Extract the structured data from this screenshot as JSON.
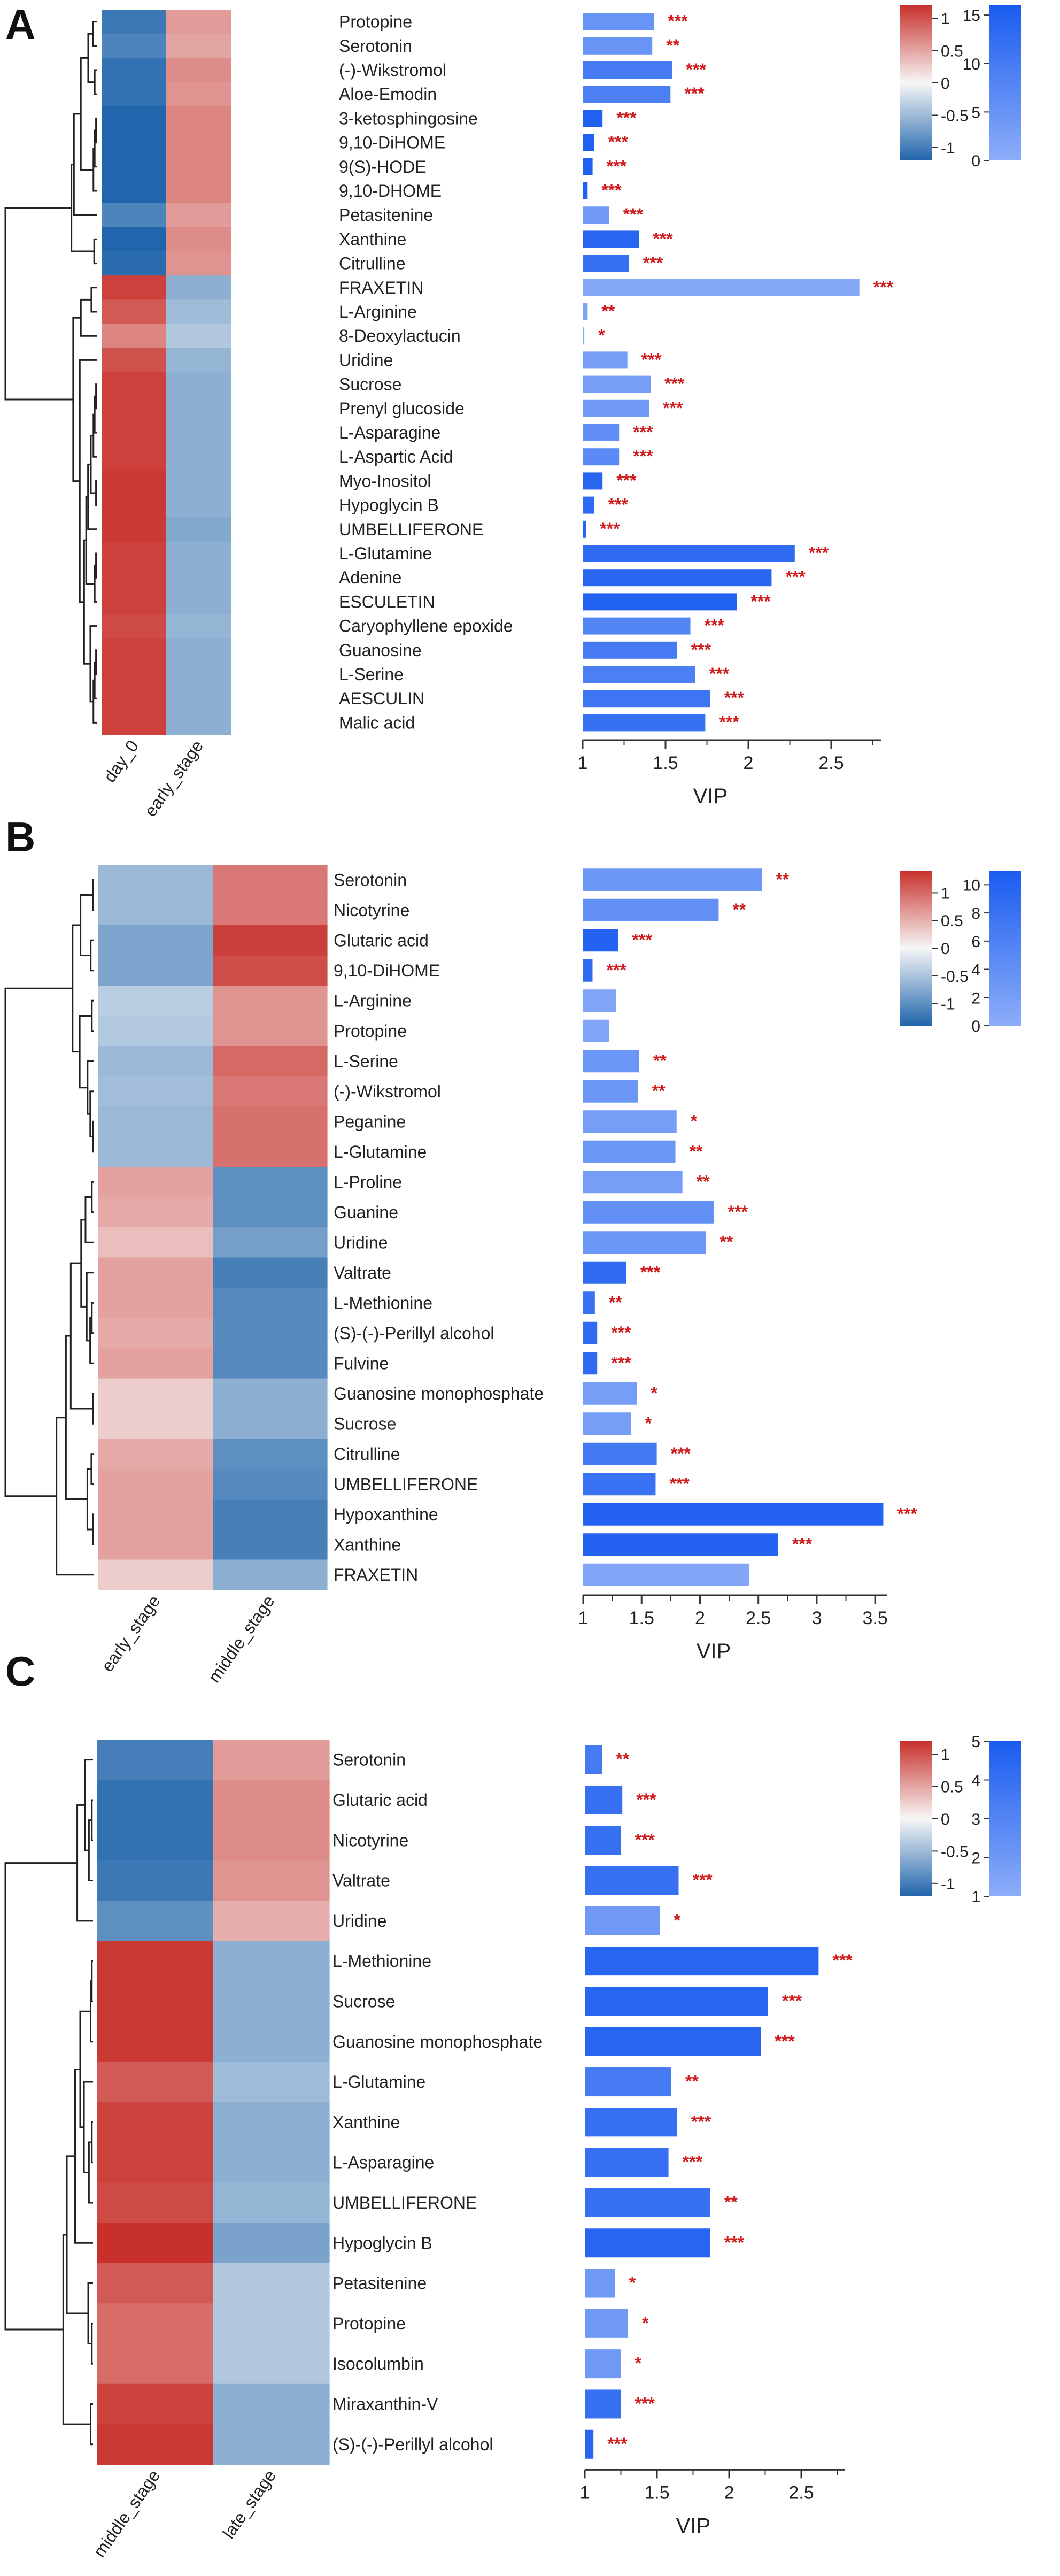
{
  "figure": {
    "colors": {
      "heat_low": "#2166ac",
      "heat_mid": "#f7f7f7",
      "heat_high": "#c8312b",
      "vip_low": "#8cadf8",
      "vip_high": "#1a5cf0",
      "star": "#d01c1c",
      "axis": "#333333",
      "dendro": "#222222"
    },
    "x_label": "VIP"
  },
  "chart_data": [
    {
      "type": "heatmap+bar",
      "panel_label": "A",
      "columns": [
        "day_0",
        "early_stage"
      ],
      "heat_scale": {
        "min": -1.2,
        "max": 1.2,
        "ticks": [
          "1",
          "0.5",
          "0",
          "-0.5",
          "-1"
        ],
        "tick_values": [
          1,
          0.5,
          0,
          -0.5,
          -1
        ]
      },
      "vip_color_scale": {
        "min": 0,
        "max": 16,
        "ticks": [
          "15",
          "10",
          "5",
          "0"
        ],
        "tick_values": [
          15,
          10,
          5,
          0
        ]
      },
      "xaxis": {
        "label": "VIP",
        "min": 1,
        "max": 2.8,
        "ticks": [
          "1",
          "1.5",
          "2",
          "2.5"
        ],
        "tick_values": [
          1,
          1.5,
          2,
          2.5
        ]
      },
      "rows": [
        {
          "name": "Protopine",
          "heat": [
            -1.05,
            0.55
          ],
          "vip": 1.43,
          "color_value": 5,
          "sig": "***"
        },
        {
          "name": "Serotonin",
          "heat": [
            -0.95,
            0.5
          ],
          "vip": 1.42,
          "color_value": 5,
          "sig": "**"
        },
        {
          "name": "(-)-Wikstromol",
          "heat": [
            -1.1,
            0.65
          ],
          "vip": 1.54,
          "color_value": 10,
          "sig": "***"
        },
        {
          "name": "Aloe-Emodin",
          "heat": [
            -1.1,
            0.6
          ],
          "vip": 1.53,
          "color_value": 9,
          "sig": "***"
        },
        {
          "name": "3-ketosphingosine",
          "heat": [
            -1.25,
            0.7
          ],
          "vip": 1.12,
          "color_value": 15,
          "sig": "***"
        },
        {
          "name": "9,10-DiHOME",
          "heat": [
            -1.25,
            0.7
          ],
          "vip": 1.07,
          "color_value": 15,
          "sig": "***"
        },
        {
          "name": "9(S)-HODE",
          "heat": [
            -1.25,
            0.7
          ],
          "vip": 1.06,
          "color_value": 15,
          "sig": "***"
        },
        {
          "name": "9,10-DHOME",
          "heat": [
            -1.25,
            0.7
          ],
          "vip": 1.03,
          "color_value": 15,
          "sig": "***"
        },
        {
          "name": "Petasitenine",
          "heat": [
            -0.95,
            0.55
          ],
          "vip": 1.16,
          "color_value": 4,
          "sig": "***"
        },
        {
          "name": "Xanthine",
          "heat": [
            -1.2,
            0.65
          ],
          "vip": 1.34,
          "color_value": 14,
          "sig": "***"
        },
        {
          "name": "Citrulline",
          "heat": [
            -1.15,
            0.6
          ],
          "vip": 1.28,
          "color_value": 12,
          "sig": "***"
        },
        {
          "name": "FRAXETIN",
          "heat": [
            1.1,
            -0.6
          ],
          "vip": 2.67,
          "color_value": 1,
          "sig": "***"
        },
        {
          "name": "L-Arginine",
          "heat": [
            0.95,
            -0.5
          ],
          "vip": 1.03,
          "color_value": 2,
          "sig": "**"
        },
        {
          "name": "8-Deoxylactucin",
          "heat": [
            0.7,
            -0.4
          ],
          "vip": 1.01,
          "color_value": 1,
          "sig": "*"
        },
        {
          "name": "Uridine",
          "heat": [
            1.0,
            -0.55
          ],
          "vip": 1.27,
          "color_value": 3,
          "sig": "***"
        },
        {
          "name": "Sucrose",
          "heat": [
            1.1,
            -0.6
          ],
          "vip": 1.41,
          "color_value": 3,
          "sig": "***"
        },
        {
          "name": "Prenyl glucoside",
          "heat": [
            1.1,
            -0.6
          ],
          "vip": 1.4,
          "color_value": 4,
          "sig": "***"
        },
        {
          "name": "L-Asparagine",
          "heat": [
            1.1,
            -0.6
          ],
          "vip": 1.22,
          "color_value": 6,
          "sig": "***"
        },
        {
          "name": "L-Aspartic Acid",
          "heat": [
            1.1,
            -0.6
          ],
          "vip": 1.22,
          "color_value": 7,
          "sig": "***"
        },
        {
          "name": "Myo-Inositol",
          "heat": [
            1.15,
            -0.6
          ],
          "vip": 1.12,
          "color_value": 14,
          "sig": "***"
        },
        {
          "name": "Hypoglycin B",
          "heat": [
            1.15,
            -0.6
          ],
          "vip": 1.07,
          "color_value": 13,
          "sig": "***"
        },
        {
          "name": "UMBELLIFERONE",
          "heat": [
            1.15,
            -0.65
          ],
          "vip": 1.02,
          "color_value": 14,
          "sig": "***"
        },
        {
          "name": "L-Glutamine",
          "heat": [
            1.1,
            -0.6
          ],
          "vip": 2.28,
          "color_value": 13,
          "sig": "***"
        },
        {
          "name": "Adenine",
          "heat": [
            1.1,
            -0.6
          ],
          "vip": 2.14,
          "color_value": 14,
          "sig": "***"
        },
        {
          "name": "ESCULETIN",
          "heat": [
            1.1,
            -0.6
          ],
          "vip": 1.93,
          "color_value": 15,
          "sig": "***"
        },
        {
          "name": "Caryophyllene epoxide",
          "heat": [
            1.05,
            -0.55
          ],
          "vip": 1.65,
          "color_value": 8,
          "sig": "***"
        },
        {
          "name": "Guanosine",
          "heat": [
            1.1,
            -0.6
          ],
          "vip": 1.57,
          "color_value": 10,
          "sig": "***"
        },
        {
          "name": "L-Serine",
          "heat": [
            1.1,
            -0.6
          ],
          "vip": 1.68,
          "color_value": 9,
          "sig": "***"
        },
        {
          "name": "AESCULIN",
          "heat": [
            1.1,
            -0.6
          ],
          "vip": 1.77,
          "color_value": 11,
          "sig": "***"
        },
        {
          "name": "Malic acid",
          "heat": [
            1.1,
            -0.6
          ],
          "vip": 1.74,
          "color_value": 12,
          "sig": "***"
        }
      ]
    },
    {
      "type": "heatmap+bar",
      "panel_label": "B",
      "columns": [
        "early_stage",
        "middle_stage"
      ],
      "heat_scale": {
        "min": -1.4,
        "max": 1.4,
        "ticks": [
          "1",
          "0.5",
          "0",
          "-0.5",
          "-1"
        ],
        "tick_values": [
          1,
          0.5,
          0,
          -0.5,
          -1
        ]
      },
      "vip_color_scale": {
        "min": 0,
        "max": 11,
        "ticks": [
          "10",
          "8",
          "6",
          "4",
          "2",
          "0"
        ],
        "tick_values": [
          10,
          8,
          6,
          4,
          2,
          0
        ]
      },
      "xaxis": {
        "label": "VIP",
        "min": 1,
        "max": 3.6,
        "ticks": [
          "1",
          "1.5",
          "2",
          "2.5",
          "3",
          "3.5"
        ],
        "tick_values": [
          1,
          1.5,
          2,
          2.5,
          3,
          3.5
        ]
      },
      "rows": [
        {
          "name": "Serotonin",
          "heat": [
            -0.6,
            0.9
          ],
          "vip": 2.53,
          "color_value": 3,
          "sig": "**"
        },
        {
          "name": "Nicotyrine",
          "heat": [
            -0.6,
            0.9
          ],
          "vip": 2.16,
          "color_value": 4,
          "sig": "**"
        },
        {
          "name": "Glutaric acid",
          "heat": [
            -0.8,
            1.3
          ],
          "vip": 1.3,
          "color_value": 10,
          "sig": "***"
        },
        {
          "name": "9,10-DiHOME",
          "heat": [
            -0.8,
            1.2
          ],
          "vip": 1.08,
          "color_value": 9,
          "sig": "***"
        },
        {
          "name": "L-Arginine",
          "heat": [
            -0.4,
            0.7
          ],
          "vip": 1.28,
          "color_value": 1,
          "sig": ""
        },
        {
          "name": "Protopine",
          "heat": [
            -0.45,
            0.7
          ],
          "vip": 1.22,
          "color_value": 1,
          "sig": ""
        },
        {
          "name": "L-Serine",
          "heat": [
            -0.6,
            1.0
          ],
          "vip": 1.48,
          "color_value": 3,
          "sig": "**"
        },
        {
          "name": "(-)-Wikstromol",
          "heat": [
            -0.55,
            0.9
          ],
          "vip": 1.47,
          "color_value": 3,
          "sig": "**"
        },
        {
          "name": "Peganine",
          "heat": [
            -0.6,
            0.95
          ],
          "vip": 1.8,
          "color_value": 2,
          "sig": "*"
        },
        {
          "name": "L-Glutamine",
          "heat": [
            -0.6,
            0.95
          ],
          "vip": 1.79,
          "color_value": 3,
          "sig": "**"
        },
        {
          "name": "L-Proline",
          "heat": [
            0.6,
            -1.0
          ],
          "vip": 1.85,
          "color_value": 2,
          "sig": "**"
        },
        {
          "name": "Guanine",
          "heat": [
            0.55,
            -1.0
          ],
          "vip": 2.12,
          "color_value": 4,
          "sig": "***"
        },
        {
          "name": "Uridine",
          "heat": [
            0.4,
            -0.85
          ],
          "vip": 2.05,
          "color_value": 3,
          "sig": "**"
        },
        {
          "name": "Valtrate",
          "heat": [
            0.6,
            -1.15
          ],
          "vip": 1.37,
          "color_value": 9,
          "sig": "***"
        },
        {
          "name": "L-Methionine",
          "heat": [
            0.6,
            -1.05
          ],
          "vip": 1.1,
          "color_value": 8,
          "sig": "**"
        },
        {
          "name": "(S)-(-)-Perillyl alcohol",
          "heat": [
            0.55,
            -1.05
          ],
          "vip": 1.12,
          "color_value": 9,
          "sig": "***"
        },
        {
          "name": "Fulvine",
          "heat": [
            0.6,
            -1.05
          ],
          "vip": 1.12,
          "color_value": 9,
          "sig": "***"
        },
        {
          "name": "Guanosine monophosphate",
          "heat": [
            0.3,
            -0.7
          ],
          "vip": 1.46,
          "color_value": 2,
          "sig": "*"
        },
        {
          "name": "Sucrose",
          "heat": [
            0.3,
            -0.7
          ],
          "vip": 1.41,
          "color_value": 2,
          "sig": "*"
        },
        {
          "name": "Citrulline",
          "heat": [
            0.55,
            -1.0
          ],
          "vip": 1.63,
          "color_value": 7,
          "sig": "***"
        },
        {
          "name": "UMBELLIFERONE",
          "heat": [
            0.6,
            -1.05
          ],
          "vip": 1.62,
          "color_value": 8,
          "sig": "***"
        },
        {
          "name": "Hypoxanthine",
          "heat": [
            0.6,
            -1.15
          ],
          "vip": 3.57,
          "color_value": 10,
          "sig": "***"
        },
        {
          "name": "Xanthine",
          "heat": [
            0.6,
            -1.15
          ],
          "vip": 2.67,
          "color_value": 10,
          "sig": "***"
        },
        {
          "name": "FRAXETIN",
          "heat": [
            0.3,
            -0.7
          ],
          "vip": 2.42,
          "color_value": 1,
          "sig": ""
        }
      ]
    },
    {
      "type": "heatmap+bar",
      "panel_label": "C",
      "columns": [
        "middle_stage",
        "late_stage"
      ],
      "heat_scale": {
        "min": -1.2,
        "max": 1.2,
        "ticks": [
          "1",
          "0.5",
          "0",
          "-0.5",
          "-1"
        ],
        "tick_values": [
          1,
          0.5,
          0,
          -0.5,
          -1
        ]
      },
      "vip_color_scale": {
        "min": 1,
        "max": 5,
        "ticks": [
          "5",
          "4",
          "3",
          "2",
          "1"
        ],
        "tick_values": [
          5,
          4,
          3,
          2,
          1
        ]
      },
      "xaxis": {
        "label": "VIP",
        "min": 1,
        "max": 2.8,
        "ticks": [
          "1",
          "1.5",
          "2",
          "2.5"
        ],
        "tick_values": [
          1,
          1.5,
          2,
          2.5
        ]
      },
      "rows": [
        {
          "name": "Serotonin",
          "heat": [
            -1.0,
            0.55
          ],
          "vip": 1.12,
          "color_value": 3.5,
          "sig": "**"
        },
        {
          "name": "Glutaric acid",
          "heat": [
            -1.1,
            0.65
          ],
          "vip": 1.26,
          "color_value": 4,
          "sig": "***"
        },
        {
          "name": "Nicotyrine",
          "heat": [
            -1.1,
            0.65
          ],
          "vip": 1.25,
          "color_value": 4,
          "sig": "***"
        },
        {
          "name": "Valtrate",
          "heat": [
            -1.05,
            0.6
          ],
          "vip": 1.65,
          "color_value": 4,
          "sig": "***"
        },
        {
          "name": "Uridine",
          "heat": [
            -0.85,
            0.45
          ],
          "vip": 1.52,
          "color_value": 2,
          "sig": "*"
        },
        {
          "name": "L-Methionine",
          "heat": [
            1.15,
            -0.6
          ],
          "vip": 2.62,
          "color_value": 4.5,
          "sig": "***"
        },
        {
          "name": "Sucrose",
          "heat": [
            1.15,
            -0.6
          ],
          "vip": 2.27,
          "color_value": 4.5,
          "sig": "***"
        },
        {
          "name": "Guanosine monophosphate",
          "heat": [
            1.15,
            -0.6
          ],
          "vip": 2.22,
          "color_value": 4.5,
          "sig": "***"
        },
        {
          "name": "L-Glutamine",
          "heat": [
            0.95,
            -0.5
          ],
          "vip": 1.6,
          "color_value": 3.5,
          "sig": "**"
        },
        {
          "name": "Xanthine",
          "heat": [
            1.1,
            -0.6
          ],
          "vip": 1.64,
          "color_value": 4,
          "sig": "***"
        },
        {
          "name": "L-Asparagine",
          "heat": [
            1.1,
            -0.6
          ],
          "vip": 1.58,
          "color_value": 4,
          "sig": "***"
        },
        {
          "name": "UMBELLIFERONE",
          "heat": [
            1.05,
            -0.55
          ],
          "vip": 1.87,
          "color_value": 4,
          "sig": "**"
        },
        {
          "name": "Hypoglycin B",
          "heat": [
            1.2,
            -0.7
          ],
          "vip": 1.87,
          "color_value": 4.5,
          "sig": "***"
        },
        {
          "name": "Petasitenine",
          "heat": [
            0.95,
            -0.4
          ],
          "vip": 1.21,
          "color_value": 2,
          "sig": "*"
        },
        {
          "name": "Protopine",
          "heat": [
            0.85,
            -0.4
          ],
          "vip": 1.3,
          "color_value": 2,
          "sig": "*"
        },
        {
          "name": "Isocolumbin",
          "heat": [
            0.85,
            -0.4
          ],
          "vip": 1.25,
          "color_value": 2,
          "sig": "*"
        },
        {
          "name": "Miraxanthin-V",
          "heat": [
            1.1,
            -0.6
          ],
          "vip": 1.25,
          "color_value": 4,
          "sig": "***"
        },
        {
          "name": "(S)-(-)-Perillyl alcohol",
          "heat": [
            1.15,
            -0.6
          ],
          "vip": 1.06,
          "color_value": 4.5,
          "sig": "***"
        }
      ]
    }
  ]
}
